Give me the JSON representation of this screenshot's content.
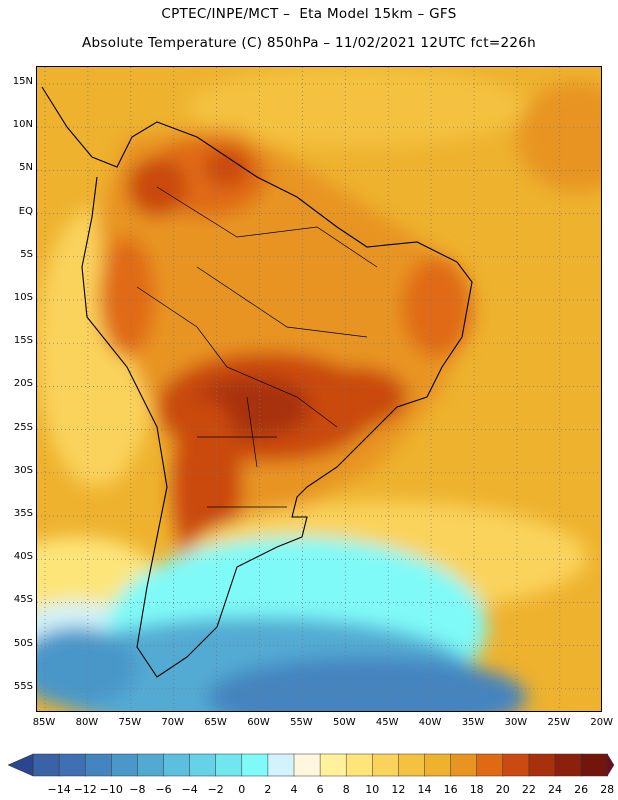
{
  "header": {
    "line1": "CPTEC/INPE/MCT –  Eta Model 15km – GFS",
    "line2": "Absolute Temperature (C) 850hPa – 11/02/2021 12UTC fct=226h"
  },
  "map": {
    "lat_labels": [
      "15N",
      "10N",
      "5N",
      "EQ",
      "5S",
      "10S",
      "15S",
      "20S",
      "25S",
      "30S",
      "35S",
      "40S",
      "45S",
      "50S",
      "55S"
    ],
    "lon_labels": [
      "85W",
      "80W",
      "75W",
      "70W",
      "65W",
      "60W",
      "55W",
      "50W",
      "45W",
      "40W",
      "35W",
      "30W",
      "25W",
      "20W"
    ],
    "ocean_color": "#eeb22e",
    "land_outline_color": "#000000"
  },
  "colorbar": {
    "labels": [
      "-14",
      "-12",
      "-10",
      "-8",
      "-6",
      "-4",
      "-2",
      "0",
      "2",
      "4",
      "6",
      "8",
      "10",
      "12",
      "14",
      "16",
      "18",
      "20",
      "22",
      "24",
      "26",
      "28"
    ],
    "colors": [
      "#3a62a7",
      "#3f70b3",
      "#4484bf",
      "#4a97c9",
      "#52aad3",
      "#5bbfdd",
      "#66d2e6",
      "#72e6ef",
      "#7ffaf8",
      "#d2f3fb",
      "#fff6de",
      "#fff29a",
      "#fde57a",
      "#fad35c",
      "#f4c240",
      "#eeb22e",
      "#e89420",
      "#e06a14",
      "#ca4a10",
      "#a8300d",
      "#8c200c",
      "#70160a"
    ],
    "low_arrow_color": "#2a4690",
    "high_arrow_color": "#6a0d20"
  }
}
